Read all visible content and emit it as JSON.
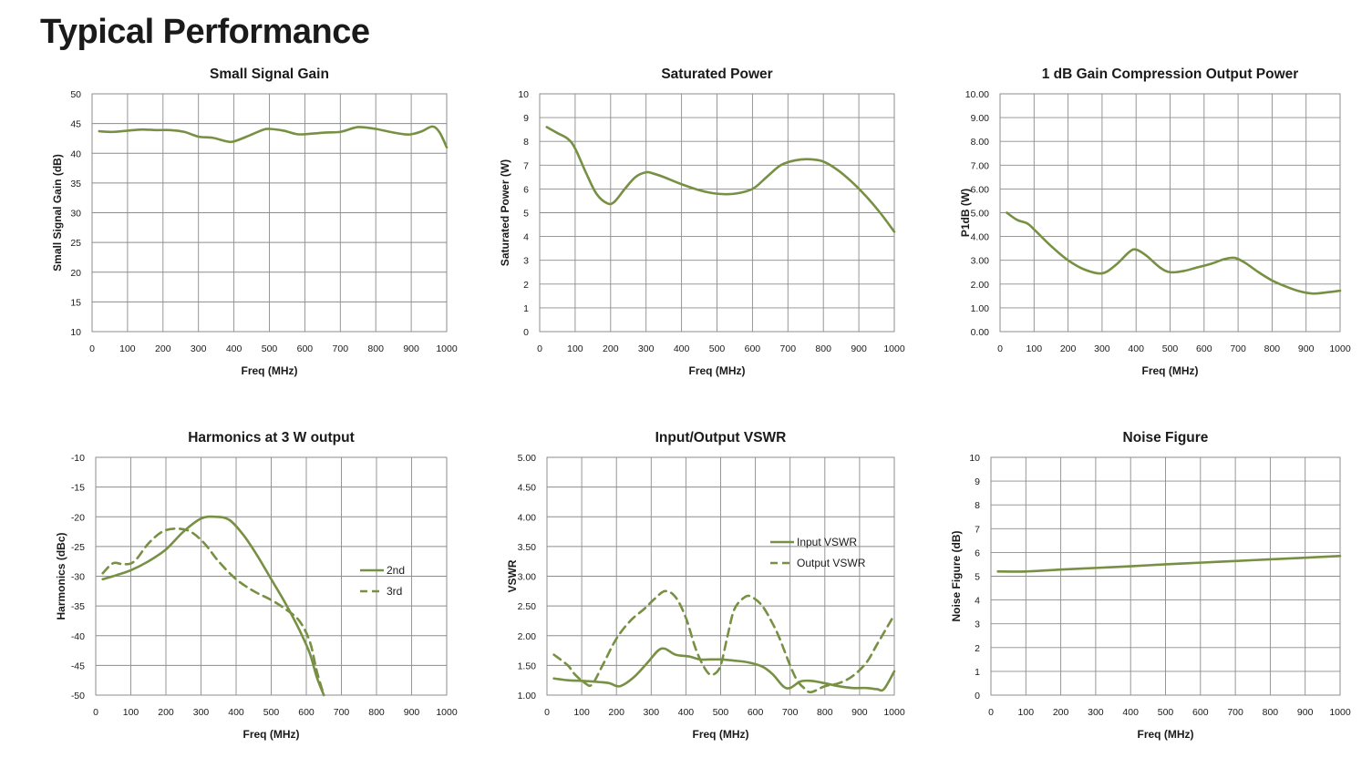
{
  "page": {
    "title": "Typical Performance"
  },
  "colors": {
    "series": "#779043",
    "grid": "#8c8c8c",
    "text": "#1a1a1a"
  },
  "chart_data": [
    {
      "id": "small-signal-gain",
      "type": "line",
      "title": "Small Signal Gain",
      "xlabel": "Freq (MHz)",
      "ylabel": "Small Signal Gain (dB)",
      "xlim": [
        0,
        1000
      ],
      "ylim": [
        10,
        50
      ],
      "xticks": [
        0,
        100,
        200,
        300,
        400,
        500,
        600,
        700,
        800,
        900,
        1000
      ],
      "yticks": [
        10,
        15,
        20,
        25,
        30,
        35,
        40,
        45,
        50
      ],
      "ytick_decimals": 0,
      "grid": true,
      "series": [
        {
          "dashed": false,
          "x": [
            20,
            60,
            100,
            140,
            180,
            220,
            260,
            300,
            340,
            380,
            400,
            440,
            480,
            500,
            540,
            580,
            620,
            660,
            700,
            740,
            760,
            800,
            840,
            880,
            900,
            930,
            960,
            980,
            1000
          ],
          "y": [
            43.7,
            43.6,
            43.8,
            44.0,
            43.9,
            43.9,
            43.6,
            42.8,
            42.6,
            42.0,
            42.0,
            42.9,
            43.9,
            44.1,
            43.8,
            43.2,
            43.3,
            43.5,
            43.6,
            44.3,
            44.4,
            44.1,
            43.6,
            43.2,
            43.2,
            43.7,
            44.5,
            43.5,
            41.0
          ]
        }
      ]
    },
    {
      "id": "saturated-power",
      "type": "line",
      "title": "Saturated Power",
      "xlabel": "Freq (MHz)",
      "ylabel": "Saturated Power  (W)",
      "xlim": [
        0,
        1000
      ],
      "ylim": [
        0,
        10
      ],
      "xticks": [
        0,
        100,
        200,
        300,
        400,
        500,
        600,
        700,
        800,
        900,
        1000
      ],
      "yticks": [
        0,
        1,
        2,
        3,
        4,
        5,
        6,
        7,
        8,
        9,
        10
      ],
      "ytick_decimals": 0,
      "grid": true,
      "series": [
        {
          "dashed": false,
          "x": [
            20,
            50,
            80,
            100,
            130,
            160,
            190,
            210,
            240,
            270,
            300,
            320,
            350,
            400,
            450,
            500,
            550,
            600,
            640,
            680,
            720,
            760,
            800,
            840,
            880,
            920,
            960,
            1000
          ],
          "y": [
            8.6,
            8.35,
            8.1,
            7.7,
            6.7,
            5.8,
            5.4,
            5.45,
            6.0,
            6.5,
            6.7,
            6.65,
            6.5,
            6.2,
            5.95,
            5.8,
            5.8,
            6.0,
            6.5,
            7.0,
            7.2,
            7.25,
            7.15,
            6.8,
            6.3,
            5.7,
            5.0,
            4.2
          ]
        }
      ]
    },
    {
      "id": "p1db",
      "type": "line",
      "title": "1 dB Gain Compression Output Power",
      "xlabel": "Freq (MHz)",
      "ylabel": "P1dB (W)",
      "xlim": [
        0,
        1000
      ],
      "ylim": [
        0,
        10
      ],
      "xticks": [
        0,
        100,
        200,
        300,
        400,
        500,
        600,
        700,
        800,
        900,
        1000
      ],
      "yticks": [
        0,
        1,
        2,
        3,
        4,
        5,
        6,
        7,
        8,
        9,
        10
      ],
      "ytick_decimals": 2,
      "grid": true,
      "series": [
        {
          "dashed": false,
          "x": [
            20,
            50,
            80,
            100,
            150,
            200,
            250,
            300,
            340,
            380,
            400,
            430,
            470,
            500,
            540,
            580,
            620,
            660,
            690,
            720,
            760,
            800,
            840,
            880,
            920,
            960,
            1000
          ],
          "y": [
            5.0,
            4.7,
            4.55,
            4.3,
            3.6,
            3.0,
            2.6,
            2.45,
            2.8,
            3.35,
            3.45,
            3.2,
            2.7,
            2.5,
            2.55,
            2.7,
            2.85,
            3.05,
            3.1,
            2.9,
            2.5,
            2.15,
            1.9,
            1.7,
            1.6,
            1.65,
            1.72
          ]
        }
      ]
    },
    {
      "id": "harmonics",
      "type": "line",
      "title": "Harmonics at 3 W output",
      "xlabel": "Freq (MHz)",
      "ylabel": "Harmonics (dBc)",
      "xlim": [
        0,
        1000
      ],
      "ylim": [
        -50,
        -10
      ],
      "xticks": [
        0,
        100,
        200,
        300,
        400,
        500,
        600,
        700,
        800,
        900,
        1000
      ],
      "yticks": [
        -50,
        -45,
        -40,
        -35,
        -30,
        -25,
        -20,
        -15,
        -10
      ],
      "ytick_decimals": 0,
      "grid": true,
      "legend": {
        "position": "right",
        "entries": [
          "2nd",
          "3rd"
        ]
      },
      "series": [
        {
          "name": "2nd",
          "dashed": false,
          "x": [
            20,
            60,
            100,
            150,
            200,
            250,
            300,
            340,
            380,
            420,
            460,
            500,
            540,
            580,
            610,
            630,
            650
          ],
          "y": [
            -30.5,
            -29.8,
            -29.0,
            -27.5,
            -25.5,
            -22.5,
            -20.3,
            -20.0,
            -20.5,
            -23.0,
            -26.5,
            -30.5,
            -34.5,
            -39.0,
            -43.0,
            -47.0,
            -50.0
          ]
        },
        {
          "name": "3rd",
          "dashed": false,
          "x": [
            20,
            50,
            80,
            110,
            150,
            190,
            230,
            270,
            310,
            350,
            400,
            450,
            500,
            540,
            580,
            610,
            630,
            650
          ],
          "y": [
            -29.5,
            -27.8,
            -28.0,
            -27.5,
            -24.5,
            -22.5,
            -22.0,
            -22.5,
            -24.5,
            -27.5,
            -30.5,
            -32.5,
            -34.0,
            -35.5,
            -37.5,
            -41.0,
            -46.0,
            -50.0
          ],
          "dashed_style": true
        }
      ]
    },
    {
      "id": "vswr",
      "type": "line",
      "title": "Input/Output VSWR",
      "xlabel": "Freq (MHz)",
      "ylabel": "VSWR",
      "xlim": [
        0,
        1000
      ],
      "ylim": [
        1.0,
        5.0
      ],
      "xticks": [
        0,
        100,
        200,
        300,
        400,
        500,
        600,
        700,
        800,
        900,
        1000
      ],
      "yticks": [
        1.0,
        1.5,
        2.0,
        2.5,
        3.0,
        3.5,
        4.0,
        4.5,
        5.0
      ],
      "ytick_decimals": 2,
      "grid": true,
      "legend": {
        "position": "center-right",
        "entries": [
          "Input VSWR",
          "Output VSWR"
        ]
      },
      "series": [
        {
          "name": "Input VSWR",
          "dashed": false,
          "x": [
            20,
            60,
            100,
            150,
            180,
            210,
            250,
            290,
            320,
            340,
            370,
            410,
            440,
            470,
            500,
            540,
            580,
            620,
            650,
            680,
            700,
            730,
            760,
            800,
            840,
            880,
            920,
            950,
            970,
            1000
          ],
          "y": [
            1.28,
            1.25,
            1.24,
            1.22,
            1.2,
            1.15,
            1.3,
            1.55,
            1.75,
            1.78,
            1.68,
            1.65,
            1.6,
            1.6,
            1.6,
            1.58,
            1.55,
            1.48,
            1.35,
            1.15,
            1.12,
            1.23,
            1.24,
            1.2,
            1.15,
            1.12,
            1.12,
            1.1,
            1.1,
            1.4
          ]
        },
        {
          "name": "Output VSWR",
          "dashed": true,
          "x": [
            20,
            60,
            80,
            110,
            130,
            160,
            200,
            240,
            280,
            310,
            340,
            370,
            400,
            430,
            460,
            480,
            500,
            520,
            540,
            570,
            590,
            620,
            650,
            670,
            700,
            720,
            740,
            760,
            800,
            840,
            880,
            920,
            950,
            980,
            1000
          ],
          "y": [
            1.68,
            1.5,
            1.35,
            1.2,
            1.18,
            1.5,
            1.95,
            2.25,
            2.45,
            2.62,
            2.75,
            2.65,
            2.3,
            1.75,
            1.4,
            1.35,
            1.5,
            2.0,
            2.45,
            2.65,
            2.65,
            2.5,
            2.2,
            1.95,
            1.5,
            1.25,
            1.12,
            1.05,
            1.15,
            1.2,
            1.32,
            1.55,
            1.85,
            2.15,
            2.35
          ]
        }
      ]
    },
    {
      "id": "noise-figure",
      "type": "line",
      "title": "Noise Figure",
      "xlabel": "Freq (MHz)",
      "ylabel": "Noise Figure (dB)",
      "xlim": [
        0,
        1000
      ],
      "ylim": [
        0,
        10
      ],
      "xticks": [
        0,
        100,
        200,
        300,
        400,
        500,
        600,
        700,
        800,
        900,
        1000
      ],
      "yticks": [
        0,
        1,
        2,
        3,
        4,
        5,
        6,
        7,
        8,
        9,
        10
      ],
      "ytick_decimals": 0,
      "grid": true,
      "series": [
        {
          "dashed": false,
          "x": [
            20,
            100,
            200,
            300,
            400,
            500,
            600,
            700,
            800,
            900,
            1000
          ],
          "y": [
            5.2,
            5.2,
            5.28,
            5.35,
            5.42,
            5.5,
            5.57,
            5.64,
            5.71,
            5.78,
            5.85
          ]
        }
      ]
    }
  ]
}
